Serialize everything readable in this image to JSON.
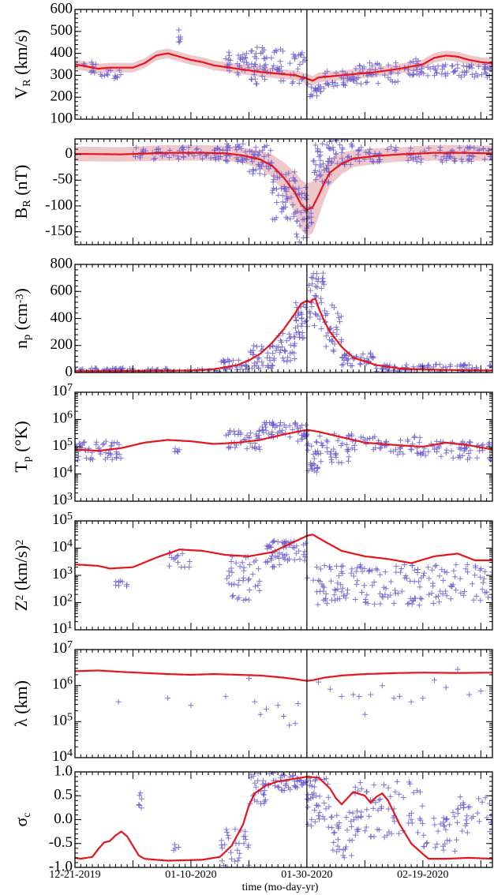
{
  "colors": {
    "model": "#e8141c",
    "band": "#e4a9ad",
    "obs": "#6a5acd",
    "event": "#000000"
  },
  "x_axis": {
    "title": "time (mo-day-yr)",
    "tick_labels": [
      "12-21-2019",
      "01-10-2020",
      "01-30-2020",
      "02-19-2020"
    ],
    "tick_days": [
      0,
      20,
      40,
      60
    ],
    "range_days": [
      0,
      72
    ],
    "event_day": 40
  },
  "chart_data": [
    {
      "id": "vr",
      "type": "line",
      "ylabel": "V_R (km/s)",
      "scale": "linear",
      "ylim": [
        100,
        600
      ],
      "yticks": [
        100,
        200,
        300,
        400,
        500,
        600
      ],
      "tick_labels": [
        "100",
        "200",
        "300",
        "400",
        "500",
        "600"
      ],
      "band": true,
      "model": [
        [
          0,
          350
        ],
        [
          2,
          340
        ],
        [
          4,
          330
        ],
        [
          6,
          335
        ],
        [
          10,
          335
        ],
        [
          12,
          355
        ],
        [
          14,
          390
        ],
        [
          16,
          400
        ],
        [
          18,
          385
        ],
        [
          20,
          370
        ],
        [
          22,
          360
        ],
        [
          24,
          345
        ],
        [
          28,
          330
        ],
        [
          32,
          315
        ],
        [
          36,
          305
        ],
        [
          38,
          300
        ],
        [
          40,
          285
        ],
        [
          41,
          275
        ],
        [
          42,
          290
        ],
        [
          44,
          295
        ],
        [
          48,
          305
        ],
        [
          52,
          315
        ],
        [
          56,
          330
        ],
        [
          60,
          350
        ],
        [
          62,
          380
        ],
        [
          64,
          390
        ],
        [
          66,
          385
        ],
        [
          68,
          370
        ],
        [
          70,
          360
        ],
        [
          72,
          355
        ]
      ],
      "obs_clusters": [
        [
          1,
          4,
          300,
          360,
          10
        ],
        [
          4,
          8,
          280,
          330,
          14
        ],
        [
          17.5,
          18.5,
          450,
          510,
          6
        ],
        [
          26,
          27,
          320,
          420,
          10
        ],
        [
          28,
          30,
          270,
          400,
          20
        ],
        [
          30,
          34,
          260,
          430,
          36
        ],
        [
          34,
          36,
          270,
          420,
          18
        ],
        [
          37,
          40,
          250,
          410,
          22
        ],
        [
          40,
          43,
          200,
          260,
          18
        ],
        [
          43,
          48,
          250,
          320,
          30
        ],
        [
          48,
          56,
          260,
          360,
          44
        ],
        [
          56,
          60,
          300,
          380,
          24
        ],
        [
          60,
          72,
          290,
          350,
          60
        ]
      ]
    },
    {
      "id": "br",
      "type": "line",
      "ylabel": "B_R (nT)",
      "scale": "linear",
      "ylim": [
        -175,
        30
      ],
      "yticks": [
        -150,
        -100,
        -50,
        0
      ],
      "tick_labels": [
        "-150",
        "-100",
        "-50",
        "0"
      ],
      "band": true,
      "model": [
        [
          0,
          1
        ],
        [
          8,
          0
        ],
        [
          16,
          3
        ],
        [
          22,
          3
        ],
        [
          26,
          2
        ],
        [
          29,
          -2
        ],
        [
          32,
          -10
        ],
        [
          34,
          -22
        ],
        [
          36,
          -45
        ],
        [
          38,
          -75
        ],
        [
          39,
          -97
        ],
        [
          40,
          -108
        ],
        [
          41,
          -102
        ],
        [
          42,
          -80
        ],
        [
          43,
          -55
        ],
        [
          44,
          -35
        ],
        [
          46,
          -18
        ],
        [
          48,
          -8
        ],
        [
          52,
          -3
        ],
        [
          56,
          0
        ],
        [
          62,
          3
        ],
        [
          66,
          3
        ],
        [
          72,
          2
        ]
      ],
      "obs_clusters": [
        [
          10,
          26,
          -10,
          15,
          60
        ],
        [
          26,
          30,
          -15,
          25,
          30
        ],
        [
          30,
          34,
          -40,
          20,
          40
        ],
        [
          34,
          38,
          -130,
          -30,
          50
        ],
        [
          38,
          41,
          -170,
          -60,
          40
        ],
        [
          41,
          44,
          -60,
          30,
          40
        ],
        [
          44,
          48,
          -20,
          30,
          30
        ],
        [
          48,
          72,
          -15,
          15,
          90
        ]
      ]
    },
    {
      "id": "np",
      "type": "line",
      "ylabel": "n_p (cm^-3)",
      "scale": "linear",
      "ylim": [
        0,
        800
      ],
      "yticks": [
        0,
        200,
        400,
        600,
        800
      ],
      "tick_labels": [
        "0",
        "200",
        "400",
        "600",
        "800"
      ],
      "band": false,
      "model": [
        [
          0,
          10
        ],
        [
          10,
          12
        ],
        [
          20,
          15
        ],
        [
          24,
          25
        ],
        [
          28,
          55
        ],
        [
          30,
          90
        ],
        [
          32,
          140
        ],
        [
          34,
          220
        ],
        [
          36,
          320
        ],
        [
          38,
          440
        ],
        [
          39,
          510
        ],
        [
          40,
          530
        ],
        [
          40.7,
          520
        ],
        [
          41,
          540
        ],
        [
          41.5,
          545
        ],
        [
          42,
          480
        ],
        [
          43,
          380
        ],
        [
          44,
          300
        ],
        [
          46,
          190
        ],
        [
          48,
          110
        ],
        [
          52,
          55
        ],
        [
          56,
          30
        ],
        [
          60,
          22
        ],
        [
          66,
          18
        ],
        [
          72,
          15
        ]
      ],
      "obs_clusters": [
        [
          0,
          10,
          5,
          35,
          40
        ],
        [
          10,
          25,
          5,
          30,
          30
        ],
        [
          25,
          30,
          20,
          100,
          30
        ],
        [
          30,
          35,
          30,
          200,
          40
        ],
        [
          35,
          38,
          80,
          300,
          30
        ],
        [
          38,
          40,
          250,
          520,
          30
        ],
        [
          40,
          43,
          300,
          760,
          40
        ],
        [
          43,
          46,
          150,
          500,
          30
        ],
        [
          46,
          52,
          40,
          150,
          40
        ],
        [
          52,
          72,
          5,
          60,
          80
        ]
      ]
    },
    {
      "id": "tp",
      "type": "line",
      "ylabel": "T_p (°K)",
      "scale": "log",
      "ylim": [
        3,
        7
      ],
      "yticks": [
        3,
        4,
        5,
        6,
        7
      ],
      "tick_labels": [
        "10^3",
        "10^4",
        "10^5",
        "10^6",
        "10^7"
      ],
      "band": false,
      "model": [
        [
          0,
          4.9
        ],
        [
          4,
          4.85
        ],
        [
          8,
          4.95
        ],
        [
          12,
          5.15
        ],
        [
          16,
          5.25
        ],
        [
          20,
          5.2
        ],
        [
          24,
          5.1
        ],
        [
          28,
          5.15
        ],
        [
          32,
          5.25
        ],
        [
          36,
          5.45
        ],
        [
          40,
          5.62
        ],
        [
          42,
          5.55
        ],
        [
          46,
          5.35
        ],
        [
          50,
          5.15
        ],
        [
          56,
          5.05
        ],
        [
          60,
          5.0
        ],
        [
          64,
          5.15
        ],
        [
          68,
          5.05
        ],
        [
          72,
          4.9
        ]
      ],
      "obs_clusters": [
        [
          0,
          8,
          4.5,
          5.2,
          50
        ],
        [
          17,
          18,
          4.8,
          5.0,
          5
        ],
        [
          26,
          32,
          4.9,
          5.6,
          40
        ],
        [
          32,
          36,
          5.3,
          5.9,
          30
        ],
        [
          36,
          40,
          5.2,
          5.9,
          30
        ],
        [
          40,
          42,
          4.0,
          5.3,
          25
        ],
        [
          42,
          48,
          4.3,
          5.5,
          40
        ],
        [
          48,
          60,
          4.7,
          5.4,
          50
        ],
        [
          60,
          72,
          4.5,
          5.2,
          60
        ]
      ]
    },
    {
      "id": "z2",
      "type": "line",
      "ylabel": "Z^2 (km/s)^2",
      "scale": "log",
      "ylim": [
        1,
        5
      ],
      "yticks": [
        1,
        2,
        3,
        4,
        5
      ],
      "tick_labels": [
        "10^1",
        "10^2",
        "10^3",
        "10^4",
        "10^5"
      ],
      "band": false,
      "model": [
        [
          0,
          3.4
        ],
        [
          4,
          3.35
        ],
        [
          6,
          3.25
        ],
        [
          10,
          3.3
        ],
        [
          14,
          3.65
        ],
        [
          18,
          3.95
        ],
        [
          22,
          3.9
        ],
        [
          26,
          3.75
        ],
        [
          30,
          3.7
        ],
        [
          34,
          3.85
        ],
        [
          38,
          4.25
        ],
        [
          40,
          4.45
        ],
        [
          41,
          4.5
        ],
        [
          43,
          4.25
        ],
        [
          46,
          3.9
        ],
        [
          50,
          3.7
        ],
        [
          54,
          3.6
        ],
        [
          58,
          3.45
        ],
        [
          62,
          3.7
        ],
        [
          66,
          3.8
        ],
        [
          69,
          3.55
        ],
        [
          72,
          3.55
        ]
      ],
      "obs_clusters": [
        [
          7,
          9,
          2.6,
          3.0,
          8
        ],
        [
          16,
          20,
          3.3,
          4.0,
          14
        ],
        [
          26,
          32,
          2.0,
          3.7,
          40
        ],
        [
          32,
          36,
          3.3,
          4.3,
          30
        ],
        [
          36,
          40,
          3.5,
          4.3,
          30
        ],
        [
          40,
          72,
          1.9,
          3.4,
          180
        ]
      ]
    },
    {
      "id": "lambda",
      "type": "line",
      "ylabel": "λ (km)",
      "scale": "log",
      "ylim": [
        4,
        7
      ],
      "yticks": [
        4,
        5,
        6,
        7
      ],
      "tick_labels": [
        "10^4",
        "10^5",
        "10^6",
        "10^7"
      ],
      "band": false,
      "model": [
        [
          0,
          6.4
        ],
        [
          4,
          6.42
        ],
        [
          8,
          6.38
        ],
        [
          12,
          6.35
        ],
        [
          16,
          6.32
        ],
        [
          20,
          6.3
        ],
        [
          24,
          6.32
        ],
        [
          28,
          6.3
        ],
        [
          32,
          6.28
        ],
        [
          36,
          6.22
        ],
        [
          38,
          6.18
        ],
        [
          40,
          6.13
        ],
        [
          41,
          6.15
        ],
        [
          43,
          6.22
        ],
        [
          46,
          6.28
        ],
        [
          50,
          6.32
        ],
        [
          56,
          6.35
        ],
        [
          60,
          6.36
        ],
        [
          66,
          6.35
        ],
        [
          72,
          6.36
        ]
      ],
      "obs_points": [
        [
          7.5,
          5.55
        ],
        [
          16,
          5.65
        ],
        [
          20,
          5.45
        ],
        [
          26,
          5.7
        ],
        [
          30,
          6.2
        ],
        [
          31,
          5.55
        ],
        [
          32,
          5.2
        ],
        [
          33,
          5.35
        ],
        [
          35,
          5.45
        ],
        [
          36,
          5.15
        ],
        [
          37,
          4.9
        ],
        [
          38,
          4.95
        ],
        [
          38.5,
          5.5
        ],
        [
          42,
          6.1
        ],
        [
          44,
          5.9
        ],
        [
          46,
          5.7
        ],
        [
          48,
          5.75
        ],
        [
          49,
          5.7
        ],
        [
          50,
          5.2
        ],
        [
          51,
          5.75
        ],
        [
          53,
          6.0
        ],
        [
          55,
          5.65
        ],
        [
          56,
          5.7
        ],
        [
          58,
          5.55
        ],
        [
          60,
          5.65
        ],
        [
          62,
          6.15
        ],
        [
          64,
          5.95
        ],
        [
          66,
          6.45
        ],
        [
          68,
          5.75
        ],
        [
          70,
          5.85
        ]
      ]
    },
    {
      "id": "sigma",
      "type": "line",
      "ylabel": "σ_c",
      "scale": "linear",
      "ylim": [
        -1.0,
        1.0
      ],
      "yticks": [
        -1.0,
        -0.5,
        0.0,
        0.5,
        1.0
      ],
      "tick_labels": [
        "-1.0",
        "-0.5",
        "0.0",
        "0.5",
        "1.0"
      ],
      "band": false,
      "model": [
        [
          0,
          -0.8
        ],
        [
          1,
          -0.82
        ],
        [
          3,
          -0.78
        ],
        [
          4,
          -0.62
        ],
        [
          5,
          -0.48
        ],
        [
          6,
          -0.45
        ],
        [
          7,
          -0.33
        ],
        [
          8,
          -0.25
        ],
        [
          9,
          -0.35
        ],
        [
          10,
          -0.55
        ],
        [
          11,
          -0.75
        ],
        [
          12,
          -0.82
        ],
        [
          16,
          -0.86
        ],
        [
          22,
          -0.84
        ],
        [
          25,
          -0.78
        ],
        [
          27,
          -0.55
        ],
        [
          29,
          -0.1
        ],
        [
          30,
          0.3
        ],
        [
          31,
          0.55
        ],
        [
          33,
          0.72
        ],
        [
          35,
          0.8
        ],
        [
          38,
          0.86
        ],
        [
          40,
          0.9
        ],
        [
          42,
          0.88
        ],
        [
          44,
          0.65
        ],
        [
          45,
          0.45
        ],
        [
          46,
          0.32
        ],
        [
          47,
          0.45
        ],
        [
          48,
          0.58
        ],
        [
          50,
          0.5
        ],
        [
          51,
          0.35
        ],
        [
          52,
          0.48
        ],
        [
          53,
          0.55
        ],
        [
          54,
          0.4
        ],
        [
          56,
          -0.1
        ],
        [
          58,
          -0.5
        ],
        [
          60,
          -0.72
        ],
        [
          61,
          -0.82
        ],
        [
          64,
          -0.82
        ],
        [
          68,
          -0.8
        ],
        [
          72,
          -0.82
        ]
      ],
      "obs_clusters": [
        [
          11,
          12,
          0.2,
          0.62,
          6
        ],
        [
          17,
          18,
          -0.72,
          -0.45,
          4
        ],
        [
          25,
          30,
          -1.0,
          -0.2,
          30
        ],
        [
          30,
          33,
          0.3,
          1.0,
          25
        ],
        [
          33,
          38,
          0.6,
          1.0,
          30
        ],
        [
          38,
          40,
          0.6,
          0.9,
          14
        ],
        [
          40,
          44,
          -0.2,
          0.9,
          40
        ],
        [
          44,
          48,
          -0.8,
          0.2,
          30
        ],
        [
          48,
          54,
          -0.5,
          0.85,
          40
        ],
        [
          54,
          60,
          -0.3,
          0.8,
          30
        ],
        [
          60,
          66,
          -0.7,
          0.2,
          30
        ],
        [
          66,
          72,
          -0.3,
          0.5,
          30
        ]
      ]
    }
  ]
}
